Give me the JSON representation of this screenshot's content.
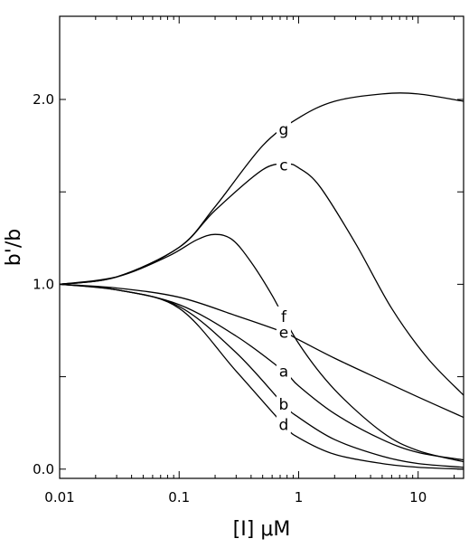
{
  "chart_data": {
    "type": "line",
    "title": "",
    "xlabel": "[I] μM",
    "ylabel": "b'/b",
    "xscale": "log",
    "xlim": [
      0.01,
      24
    ],
    "ylim": [
      -0.05,
      2.45
    ],
    "x_ticks": [
      0.01,
      0.1,
      1,
      10
    ],
    "x_tick_labels": [
      "0.01",
      "0.1",
      "1",
      "10"
    ],
    "y_ticks": [
      0.0,
      0.5,
      1.0,
      1.5,
      2.0
    ],
    "y_tick_labels": [
      "0.0",
      "",
      "1.0",
      "",
      "2.0"
    ],
    "grid": false,
    "series": [
      {
        "name": "g",
        "label_at": 0.75,
        "x": [
          0.01,
          0.03,
          0.1,
          0.2,
          0.5,
          1,
          2,
          5,
          10,
          24
        ],
        "values": [
          1.0,
          1.04,
          1.2,
          1.42,
          1.75,
          1.9,
          1.99,
          2.03,
          2.03,
          1.99
        ]
      },
      {
        "name": "c",
        "label_at": 0.75,
        "x": [
          0.01,
          0.03,
          0.1,
          0.2,
          0.5,
          0.8,
          1,
          1.5,
          3,
          6,
          12,
          24
        ],
        "values": [
          1.0,
          1.04,
          1.2,
          1.4,
          1.62,
          1.65,
          1.63,
          1.53,
          1.22,
          0.87,
          0.6,
          0.4
        ]
      },
      {
        "name": "f",
        "label_at": 0.75,
        "x": [
          0.01,
          0.03,
          0.08,
          0.14,
          0.2,
          0.28,
          0.4,
          0.6,
          1,
          2,
          5,
          10,
          24
        ],
        "values": [
          1.0,
          1.04,
          1.15,
          1.24,
          1.27,
          1.24,
          1.12,
          0.94,
          0.68,
          0.43,
          0.2,
          0.1,
          0.04
        ]
      },
      {
        "name": "e",
        "label_at": 0.75,
        "x": [
          0.01,
          0.03,
          0.1,
          0.3,
          0.75,
          1,
          2,
          5,
          10,
          24
        ],
        "values": [
          1.0,
          0.98,
          0.93,
          0.83,
          0.74,
          0.7,
          0.6,
          0.48,
          0.39,
          0.28
        ]
      },
      {
        "name": "a",
        "label_at": 0.75,
        "x": [
          0.01,
          0.03,
          0.1,
          0.3,
          0.75,
          1,
          2,
          5,
          10,
          24
        ],
        "values": [
          1.0,
          0.97,
          0.89,
          0.72,
          0.53,
          0.45,
          0.3,
          0.16,
          0.09,
          0.05
        ]
      },
      {
        "name": "b",
        "label_at": 0.75,
        "x": [
          0.01,
          0.03,
          0.1,
          0.3,
          0.75,
          1,
          2,
          5,
          10,
          24
        ],
        "values": [
          1.0,
          0.97,
          0.88,
          0.63,
          0.35,
          0.28,
          0.16,
          0.07,
          0.03,
          0.01
        ]
      },
      {
        "name": "d",
        "label_at": 0.75,
        "x": [
          0.01,
          0.03,
          0.1,
          0.3,
          0.75,
          1,
          2,
          5,
          10,
          24
        ],
        "values": [
          1.0,
          0.97,
          0.87,
          0.53,
          0.24,
          0.17,
          0.08,
          0.03,
          0.01,
          0.0
        ]
      }
    ]
  }
}
